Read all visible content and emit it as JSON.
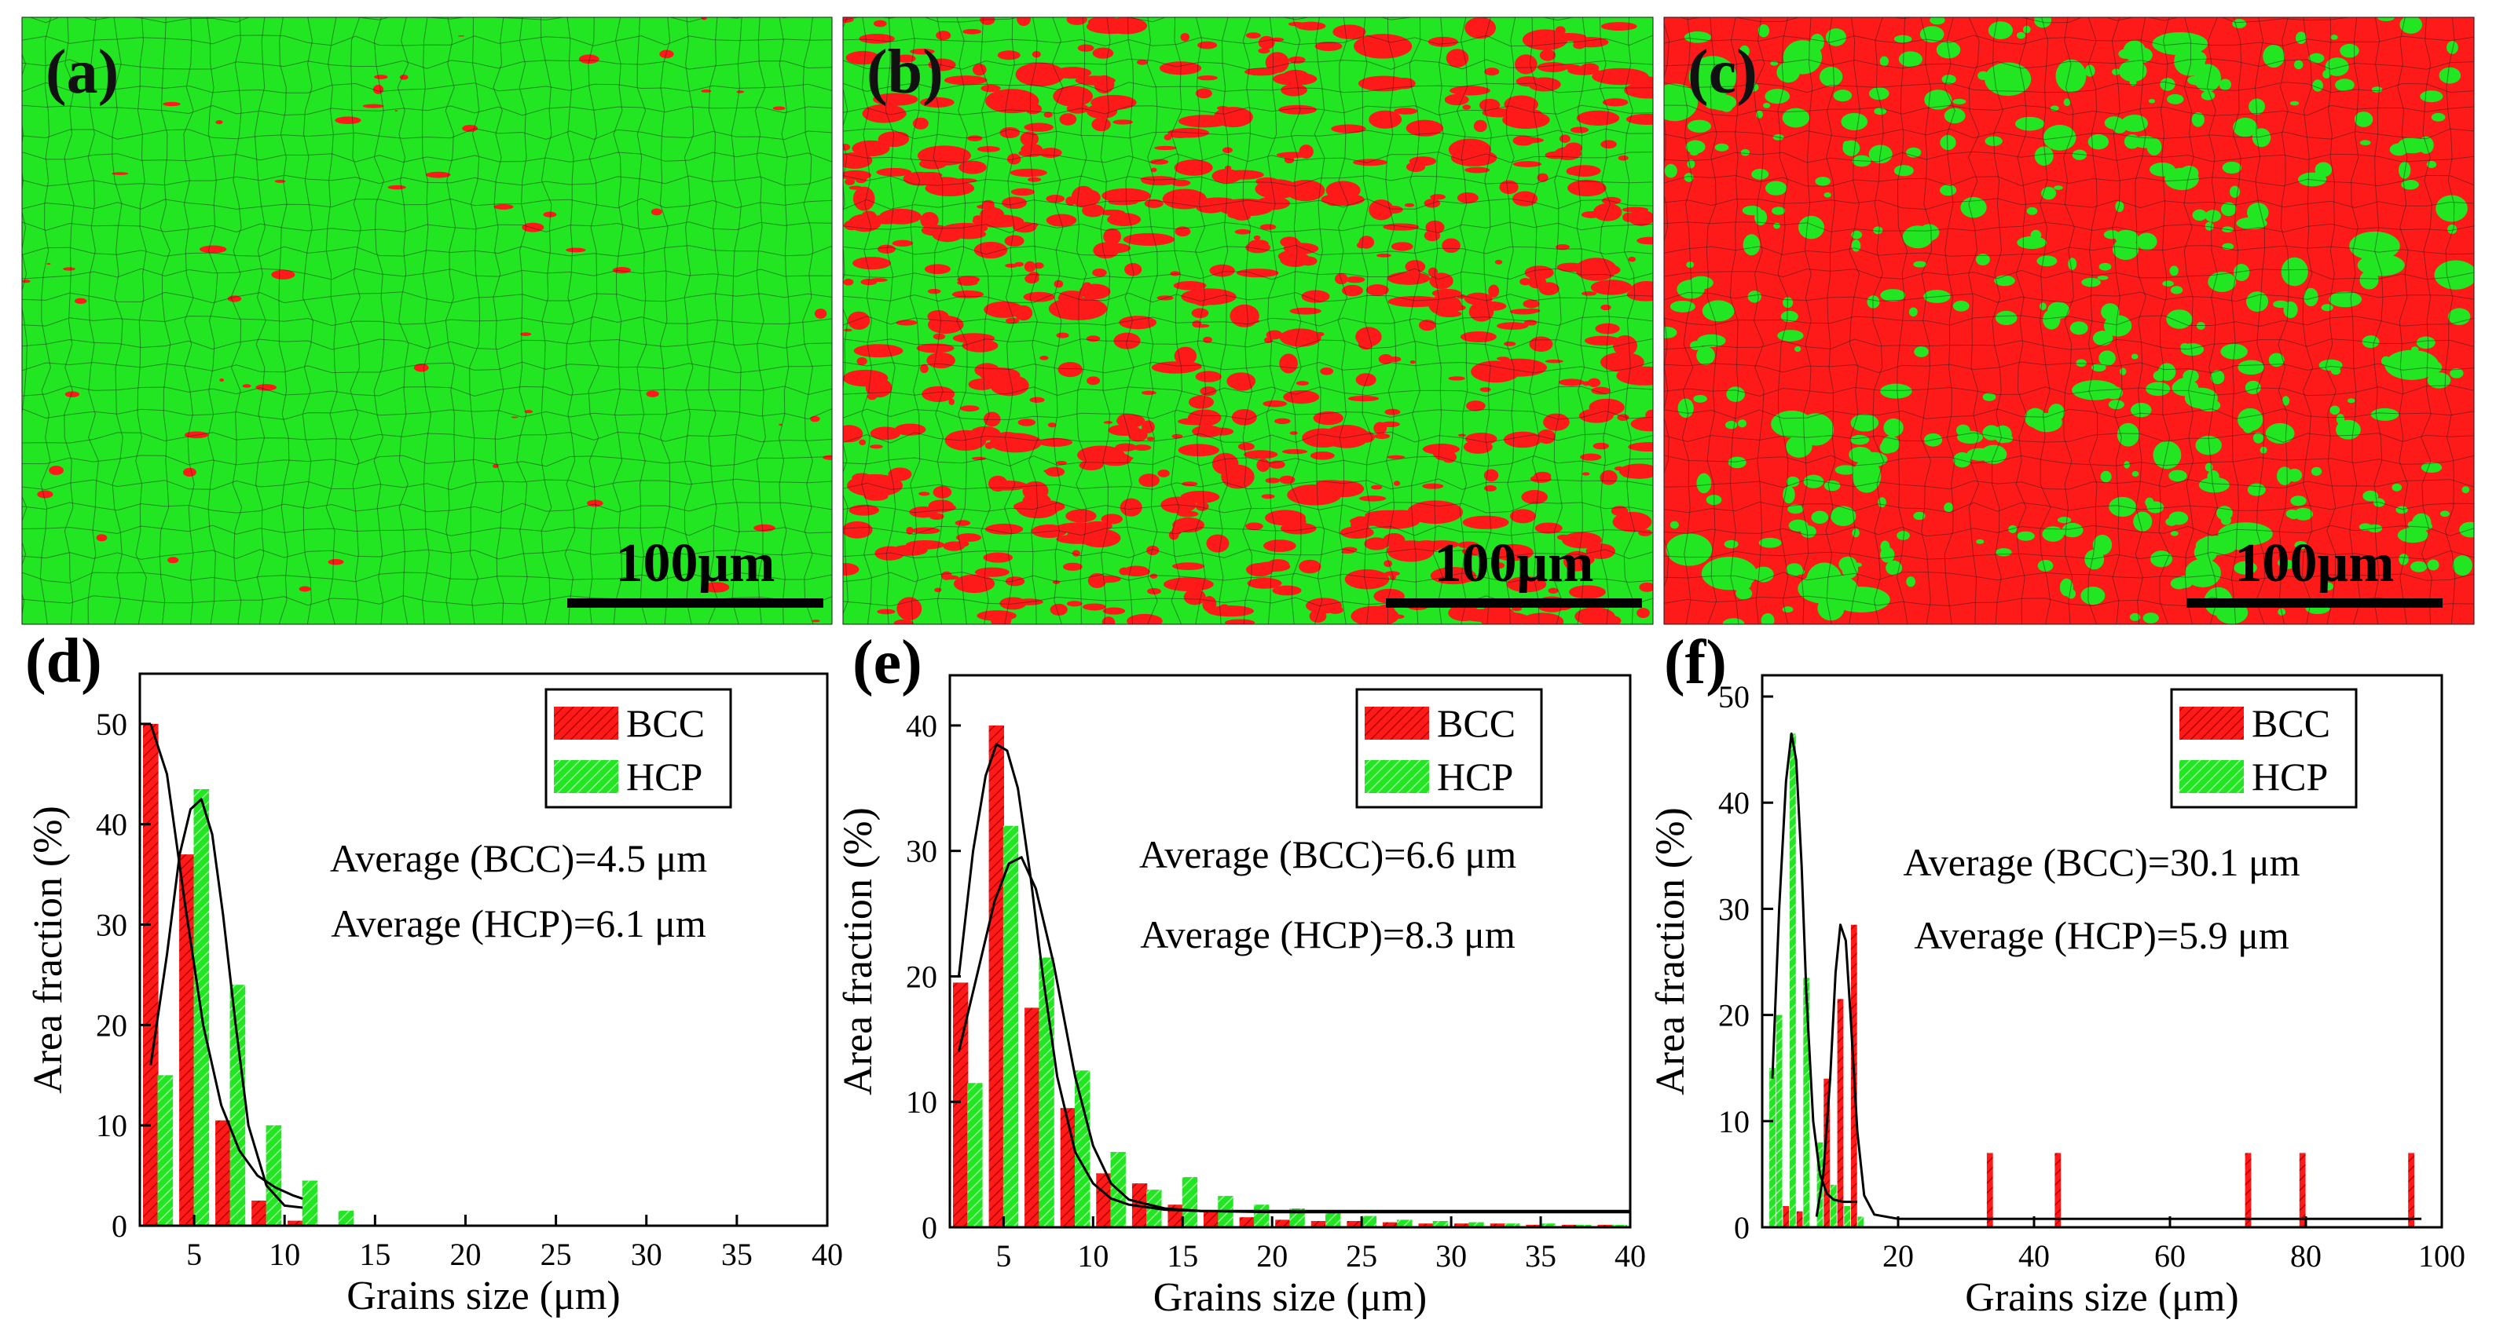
{
  "colors": {
    "bcc": "#ff1a1a",
    "hcp": "#22e622",
    "grain_boundary": "#1a1a1a",
    "axis": "#000000",
    "fit": "#000000"
  },
  "micrographs": [
    {
      "label": "(a)",
      "scale_bar": "100μm",
      "dominant_phase": "HCP",
      "bcc_fraction": 0.05
    },
    {
      "label": "(b)",
      "scale_bar": "100μm",
      "dominant_phase": "HCP",
      "bcc_fraction": 0.38
    },
    {
      "label": "(c)",
      "scale_bar": "100μm",
      "dominant_phase": "BCC",
      "bcc_fraction": 0.74
    }
  ],
  "chart_data": [
    {
      "label": "(d)",
      "type": "bar",
      "xlabel": "Grains size (μm)",
      "ylabel": "Area fraction (%)",
      "xlim": [
        2,
        40
      ],
      "ylim": [
        0,
        55
      ],
      "xticks": [
        5,
        10,
        15,
        20,
        25,
        30,
        35,
        40
      ],
      "yticks": [
        0,
        10,
        20,
        30,
        40,
        50
      ],
      "legend": [
        "BCC",
        "HCP"
      ],
      "annotations": [
        "Average (BCC)=4.5 μm",
        "Average (HCP)=6.1 μm"
      ],
      "bar_width": 0.85,
      "series": [
        {
          "name": "BCC",
          "x": [
            2.6,
            4.6,
            6.6,
            8.6,
            10.6
          ],
          "values": [
            50,
            37,
            10.5,
            2.5,
            0.5
          ]
        },
        {
          "name": "HCP",
          "x": [
            3.4,
            5.4,
            7.4,
            9.4,
            11.4,
            13.4
          ],
          "values": [
            15,
            43.5,
            24,
            10,
            4.5,
            1.5
          ]
        }
      ],
      "fits": [
        {
          "name": "BCC fit",
          "x": [
            2.6,
            3.5,
            4.5,
            5.5,
            6.5,
            7.5,
            8.5,
            9.5,
            10.5,
            11.0
          ],
          "y": [
            50,
            45,
            32,
            20,
            12,
            7.5,
            5,
            3.8,
            3.0,
            2.7
          ]
        },
        {
          "name": "HCP fit",
          "x": [
            2.6,
            3.5,
            4.2,
            4.8,
            5.4,
            6.0,
            6.6,
            7.3,
            8.0,
            9.0,
            10.0,
            11.0
          ],
          "y": [
            16,
            27,
            37,
            41.5,
            42.5,
            39,
            31,
            20,
            10,
            4,
            2,
            1.8
          ]
        }
      ]
    },
    {
      "label": "(e)",
      "type": "bar",
      "xlabel": "Grains size (μm)",
      "ylabel": "Area fraction (%)",
      "xlim": [
        2,
        40
      ],
      "ylim": [
        0,
        44
      ],
      "xticks": [
        5,
        10,
        15,
        20,
        25,
        30,
        35,
        40
      ],
      "yticks": [
        0,
        10,
        20,
        30,
        40
      ],
      "legend": [
        "BCC",
        "HCP"
      ],
      "annotations": [
        "Average (BCC)=6.6 μm",
        "Average (HCP)=8.3 μm"
      ],
      "bar_width": 0.85,
      "series": [
        {
          "name": "BCC",
          "x": [
            2.6,
            4.6,
            6.6,
            8.6,
            10.6,
            12.6,
            14.6,
            16.6,
            18.6,
            20.6,
            22.6,
            24.6,
            26.6,
            28.6,
            30.6,
            32.6,
            34.6,
            36.6,
            38.6
          ],
          "values": [
            19.5,
            40,
            17.5,
            9.5,
            4.3,
            3.5,
            1.8,
            1.2,
            0.8,
            0.6,
            0.5,
            0.5,
            0.4,
            0.3,
            0.3,
            0.3,
            0.2,
            0.2,
            0.2
          ]
        },
        {
          "name": "HCP",
          "x": [
            3.4,
            5.4,
            7.4,
            9.4,
            11.4,
            13.4,
            15.4,
            17.4,
            19.4,
            21.4,
            23.4,
            25.4,
            27.4,
            29.4,
            31.4,
            33.4,
            35.4,
            37.4,
            39.4
          ],
          "values": [
            11.5,
            32,
            21.5,
            12.5,
            6,
            3,
            4,
            2.5,
            1.8,
            1.5,
            1.2,
            0.9,
            0.6,
            0.5,
            0.4,
            0.3,
            0.3,
            0.2,
            0.2
          ]
        }
      ],
      "fits": [
        {
          "name": "BCC fit",
          "x": [
            2.5,
            3.3,
            4.0,
            4.6,
            5.2,
            5.8,
            6.5,
            7.2,
            8.0,
            9.0,
            10.0,
            11.0,
            12.0,
            14.0,
            16.0,
            20.0,
            40.0
          ],
          "y": [
            20,
            30,
            36,
            38.5,
            38,
            35,
            28,
            20,
            12,
            6,
            3.5,
            2.3,
            1.8,
            1.4,
            1.3,
            1.3,
            1.3
          ]
        },
        {
          "name": "HCP fit",
          "x": [
            2.5,
            3.5,
            4.5,
            5.3,
            6.0,
            6.8,
            7.8,
            9.0,
            10.0,
            11.0,
            12.0,
            14.0,
            16.0,
            20.0,
            40.0
          ],
          "y": [
            14,
            20,
            26,
            29,
            29.5,
            27,
            21,
            12,
            6.5,
            3.5,
            2.2,
            1.5,
            1.3,
            1.2,
            1.2
          ]
        }
      ]
    },
    {
      "label": "(f)",
      "type": "bar",
      "xlabel": "Grains size (μm)",
      "ylabel": "Area fraction (%)",
      "xlim": [
        0,
        100
      ],
      "ylim": [
        0,
        52
      ],
      "xticks": [
        20,
        40,
        60,
        80,
        100
      ],
      "yticks": [
        0,
        10,
        20,
        30,
        40,
        50
      ],
      "legend": [
        "BCC",
        "HCP"
      ],
      "annotations": [
        "Average (BCC)=30.1 μm",
        "Average (HCP)=5.9 μm"
      ],
      "bar_width": 0.9,
      "series": [
        {
          "name": "BCC",
          "x": [
            3.5,
            5.5,
            9.5,
            11.5,
            13.5,
            33.5,
            43.5,
            71.5,
            79.5,
            95.5
          ],
          "values": [
            2,
            1.5,
            14,
            21.5,
            28.5,
            7,
            7,
            7,
            7,
            7
          ]
        },
        {
          "name": "HCP",
          "x": [
            1.5,
            2.5,
            4.5,
            6.5,
            8.5,
            10.5,
            12.5,
            14.5
          ],
          "values": [
            15,
            20,
            46.5,
            23.5,
            8,
            4,
            2,
            1
          ]
        }
      ],
      "fits": [
        {
          "name": "HCP fit",
          "x": [
            1.5,
            2.5,
            3.5,
            4.3,
            5.0,
            5.8,
            6.5,
            7.5,
            8.5,
            9.5,
            10.5,
            12.0,
            14.0
          ],
          "y": [
            14,
            30,
            42,
            46.5,
            44,
            34,
            22,
            10,
            5,
            3.2,
            2.6,
            2.4,
            2.4
          ]
        },
        {
          "name": "BCC fit",
          "x": [
            8.0,
            9.0,
            10.0,
            10.8,
            11.5,
            12.3,
            13.0,
            14.0,
            15.0,
            16.5,
            20.0,
            40.0,
            97.0
          ],
          "y": [
            1,
            5,
            14,
            24,
            28.5,
            27,
            20,
            9,
            3,
            1.2,
            0.8,
            0.8,
            0.8
          ]
        }
      ]
    }
  ]
}
